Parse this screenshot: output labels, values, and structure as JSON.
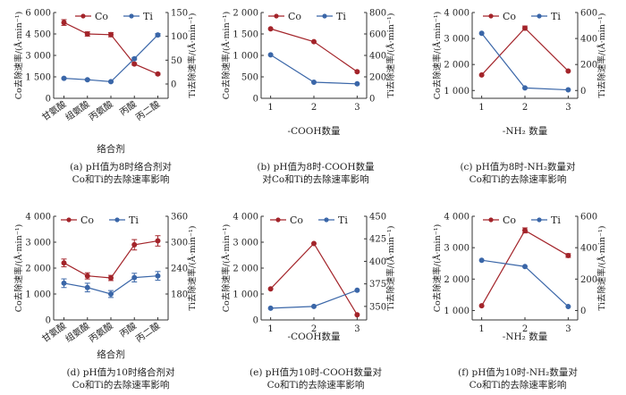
{
  "colors": {
    "co": "#a3242a",
    "ti": "#3a66a8",
    "axis": "#333333"
  },
  "panels": [
    {
      "id": "a",
      "caption_line1": "(a) pH值为8时络合剂对",
      "caption_line2": "Co和Ti的去除速率影响",
      "xlabel": "络合剂",
      "ylabel_left": "Co去除速率/(Å·min⁻¹)",
      "ylabel_right": "Ti去除速率/(Å·min⁻¹)",
      "legend": [
        "Co",
        "Ti"
      ]
    },
    {
      "id": "b",
      "caption_line1": "(b) pH值为8时-COOH数量",
      "caption_line2": "对Co和Ti的去除速率影响",
      "xlabel": "-COOH数量",
      "ylabel_left": "Co去除速率/(Å·min⁻¹)",
      "ylabel_right": "Ti去除速率/(Å·min⁻¹)",
      "legend": [
        "Co",
        "Ti"
      ]
    },
    {
      "id": "c",
      "caption_line1": "(c) pH值为8时-NH₂数量对",
      "caption_line2": "Co和Ti的去除速率影响",
      "xlabel": "-NH₂ 数量",
      "ylabel_left": "Co去除速率/(Å·min⁻¹)",
      "ylabel_right": "Ti去除速率/(Å·min⁻¹)",
      "legend": [
        "Co",
        "Ti"
      ]
    },
    {
      "id": "d",
      "caption_line1": "(d) pH值为10时络合剂对",
      "caption_line2": "Co和Ti的去除速率影响",
      "xlabel": "络合剂",
      "ylabel_left": "Co去除速率/(Å·min⁻¹)",
      "ylabel_right": "Ti去除速率/(Å·min⁻¹)",
      "legend": [
        "Co",
        "Ti"
      ]
    },
    {
      "id": "e",
      "caption_line1": "(e) pH值为10时-COOH数量对",
      "caption_line2": "Co和Ti的去除速率影响",
      "xlabel": "-COOH数量",
      "ylabel_left": "Co去除速率/(Å·min⁻¹)",
      "ylabel_right": "Ti去除速率/(Å·min⁻¹)",
      "legend": [
        "Co",
        "Ti"
      ]
    },
    {
      "id": "f",
      "caption_line1": "(f) pH值为10时-NH₂数量对",
      "caption_line2": "Co和Ti的去除速率影响",
      "xlabel": "-NH₂ 数量",
      "ylabel_left": "Co去除速率/(Å·min⁻¹)",
      "ylabel_right": "Ti去除速率/(Å·min⁻¹)",
      "legend": [
        "Co",
        "Ti"
      ]
    }
  ],
  "chart_data": [
    {
      "type": "line",
      "categories": [
        "甘氨酸",
        "组氨酸",
        "丙氨酸",
        "丙酸",
        "丙二酸"
      ],
      "y_left": {
        "ylim": [
          0,
          6000
        ],
        "ticks": [
          0,
          1500,
          3000,
          4500,
          6000
        ],
        "tick_labels": [
          "0",
          "1 500",
          "3 000",
          "4 500",
          "6 000"
        ]
      },
      "y_right": {
        "ylim": [
          -30,
          150
        ],
        "ticks": [
          0,
          50,
          100,
          150
        ],
        "tick_labels": [
          "0",
          "50",
          "100",
          "150"
        ]
      },
      "series": [
        {
          "name": "Co",
          "axis": "left",
          "values": [
            5300,
            4500,
            4450,
            2400,
            1700
          ],
          "errors": [
            200,
            150,
            150,
            80,
            60
          ]
        },
        {
          "name": "Ti",
          "axis": "right",
          "values": [
            12,
            9,
            5,
            53,
            103
          ],
          "errors": [
            1,
            1,
            1,
            2,
            3
          ]
        }
      ]
    },
    {
      "type": "line",
      "categories": [
        "1",
        "2",
        "3"
      ],
      "y_left": {
        "ylim": [
          0,
          2000
        ],
        "ticks": [
          0,
          500,
          1000,
          1500,
          2000
        ],
        "tick_labels": [
          "0",
          "500",
          "1 000",
          "1 500",
          "2 000"
        ]
      },
      "y_right": {
        "ylim": [
          0,
          800
        ],
        "ticks": [
          0,
          200,
          400,
          600,
          800
        ],
        "tick_labels": [
          "0",
          "200",
          "400",
          "600",
          "800"
        ]
      },
      "series": [
        {
          "name": "Co",
          "axis": "left",
          "values": [
            1620,
            1320,
            620
          ],
          "errors": [
            0,
            0,
            0
          ]
        },
        {
          "name": "Ti",
          "axis": "right",
          "values": [
            405,
            150,
            135
          ],
          "errors": [
            0,
            0,
            0
          ]
        }
      ]
    },
    {
      "type": "line",
      "categories": [
        "1",
        "2",
        "3"
      ],
      "y_left": {
        "ylim": [
          700,
          4000
        ],
        "ticks": [
          1000,
          2000,
          3000,
          4000
        ],
        "tick_labels": [
          "1 000",
          "2 000",
          "3 000",
          "4 000"
        ]
      },
      "y_right": {
        "ylim": [
          -60,
          600
        ],
        "ticks": [
          0,
          200,
          400,
          600
        ],
        "tick_labels": [
          "0",
          "200",
          "400",
          "600"
        ]
      },
      "series": [
        {
          "name": "Co",
          "axis": "left",
          "values": [
            1600,
            3400,
            1750
          ],
          "errors": [
            0,
            80,
            0
          ]
        },
        {
          "name": "Ti",
          "axis": "right",
          "values": [
            440,
            20,
            5
          ],
          "errors": [
            0,
            0,
            0
          ]
        }
      ]
    },
    {
      "type": "line",
      "categories": [
        "甘氨酸",
        "组氨酸",
        "丙氨酸",
        "丙酸",
        "丙二酸"
      ],
      "y_left": {
        "ylim": [
          0,
          4000
        ],
        "ticks": [
          0,
          1000,
          2000,
          3000,
          4000
        ],
        "tick_labels": [
          "0",
          "1 000",
          "2 000",
          "3 000",
          "4 000"
        ]
      },
      "y_right": {
        "ylim": [
          120,
          360
        ],
        "ticks": [
          180,
          240,
          300,
          360
        ],
        "tick_labels": [
          "180",
          "240",
          "300",
          "360"
        ]
      },
      "series": [
        {
          "name": "Co",
          "axis": "left",
          "values": [
            2200,
            1700,
            1620,
            2900,
            3050
          ],
          "errors": [
            150,
            120,
            100,
            200,
            200
          ]
        },
        {
          "name": "Ti",
          "axis": "right",
          "values": [
            205,
            195,
            180,
            218,
            222
          ],
          "errors": [
            10,
            10,
            8,
            10,
            10
          ]
        }
      ]
    },
    {
      "type": "line",
      "categories": [
        "1",
        "2",
        "3"
      ],
      "y_left": {
        "ylim": [
          0,
          4000
        ],
        "ticks": [
          0,
          1000,
          2000,
          3000,
          4000
        ],
        "tick_labels": [
          "0",
          "1 000",
          "2 000",
          "3 000",
          "4 000"
        ]
      },
      "y_right": {
        "ylim": [
          335,
          450
        ],
        "ticks": [
          350,
          375,
          400,
          425,
          450
        ],
        "tick_labels": [
          "350",
          "375",
          "400",
          "425",
          "450"
        ]
      },
      "series": [
        {
          "name": "Co",
          "axis": "left",
          "values": [
            1200,
            2950,
            200
          ],
          "errors": [
            0,
            0,
            0
          ]
        },
        {
          "name": "Ti",
          "axis": "right",
          "values": [
            348,
            350,
            368
          ],
          "errors": [
            0,
            0,
            0
          ]
        }
      ]
    },
    {
      "type": "line",
      "categories": [
        "1",
        "2",
        "3"
      ],
      "y_left": {
        "ylim": [
          700,
          4000
        ],
        "ticks": [
          1000,
          2000,
          3000,
          4000
        ],
        "tick_labels": [
          "1 000",
          "2 000",
          "3 000",
          "4 000"
        ]
      },
      "y_right": {
        "ylim": [
          -60,
          600
        ],
        "ticks": [
          0,
          200,
          400,
          600
        ],
        "tick_labels": [
          "0",
          "200",
          "400",
          "600"
        ]
      },
      "series": [
        {
          "name": "Co",
          "axis": "left",
          "values": [
            1150,
            3550,
            2750
          ],
          "errors": [
            0,
            80,
            60
          ]
        },
        {
          "name": "Ti",
          "axis": "right",
          "values": [
            320,
            280,
            25
          ],
          "errors": [
            0,
            0,
            0
          ]
        }
      ]
    }
  ]
}
